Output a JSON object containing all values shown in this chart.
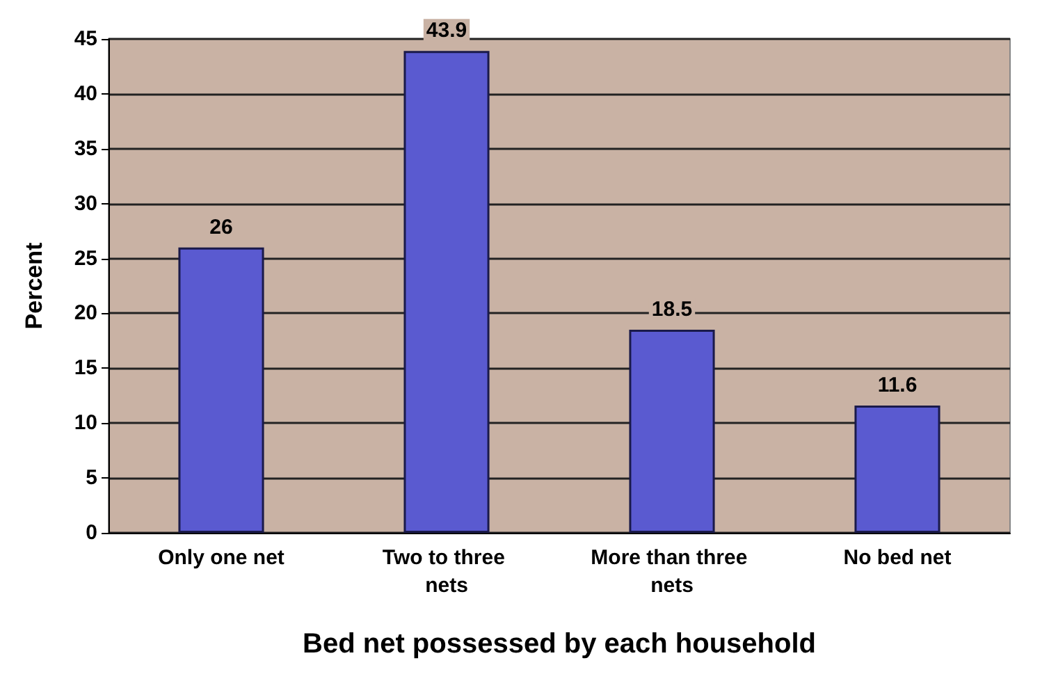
{
  "chart_data": {
    "type": "bar",
    "xlabel": "Bed net possessed by each household",
    "ylabel": "Percent",
    "categories": [
      "Only one net",
      "Two to three nets",
      "More than three nets",
      "No bed net"
    ],
    "values": [
      26,
      43.9,
      18.5,
      11.6
    ],
    "color": "#5a5ad0",
    "ylim": [
      0,
      45
    ],
    "yticks": [
      0,
      5,
      10,
      15,
      20,
      25,
      30,
      35,
      40,
      45
    ],
    "grid": "y",
    "data_labels": true
  }
}
